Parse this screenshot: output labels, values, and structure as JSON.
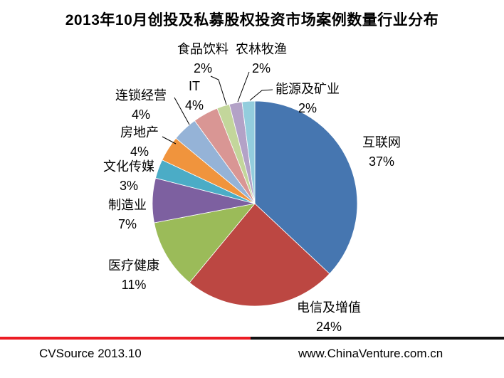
{
  "chart_data": {
    "type": "pie",
    "title": "2013年10月创投及私募股权投资市场案例数量行业分布",
    "direction": "clockwise",
    "start_angle_deg": 0,
    "legend": "none",
    "label_style": "outside-with-leader-lines",
    "slices": [
      {
        "label": "互联网",
        "value": 37,
        "pct_label": "37%",
        "color": "#4676B0"
      },
      {
        "label": "电信及增值",
        "value": 24,
        "pct_label": "24%",
        "color": "#BC4742"
      },
      {
        "label": "医疗健康",
        "value": 11,
        "pct_label": "11%",
        "color": "#9BBB59"
      },
      {
        "label": "制造业",
        "value": 7,
        "pct_label": "7%",
        "color": "#7D60A0"
      },
      {
        "label": "文化传媒",
        "value": 3,
        "pct_label": "3%",
        "color": "#4BACC6"
      },
      {
        "label": "房地产",
        "value": 4,
        "pct_label": "4%",
        "color": "#F0943D"
      },
      {
        "label": "连锁经营",
        "value": 4,
        "pct_label": "4%",
        "color": "#95B3D7"
      },
      {
        "label": "IT",
        "value": 4,
        "pct_label": "4%",
        "color": "#D99694"
      },
      {
        "label": "食品饮料",
        "value": 2,
        "pct_label": "2%",
        "color": "#C3D69B"
      },
      {
        "label": "农林牧渔",
        "value": 2,
        "pct_label": "2%",
        "color": "#B3A2C7"
      },
      {
        "label": "能源及矿业",
        "value": 2,
        "pct_label": "2%",
        "color": "#93CDDD"
      }
    ]
  },
  "footer": {
    "left": "CVSource 2013.10",
    "right": "www.ChinaVenture.com.cn",
    "accent_red": "#EC1C24",
    "accent_black": "#111111"
  }
}
